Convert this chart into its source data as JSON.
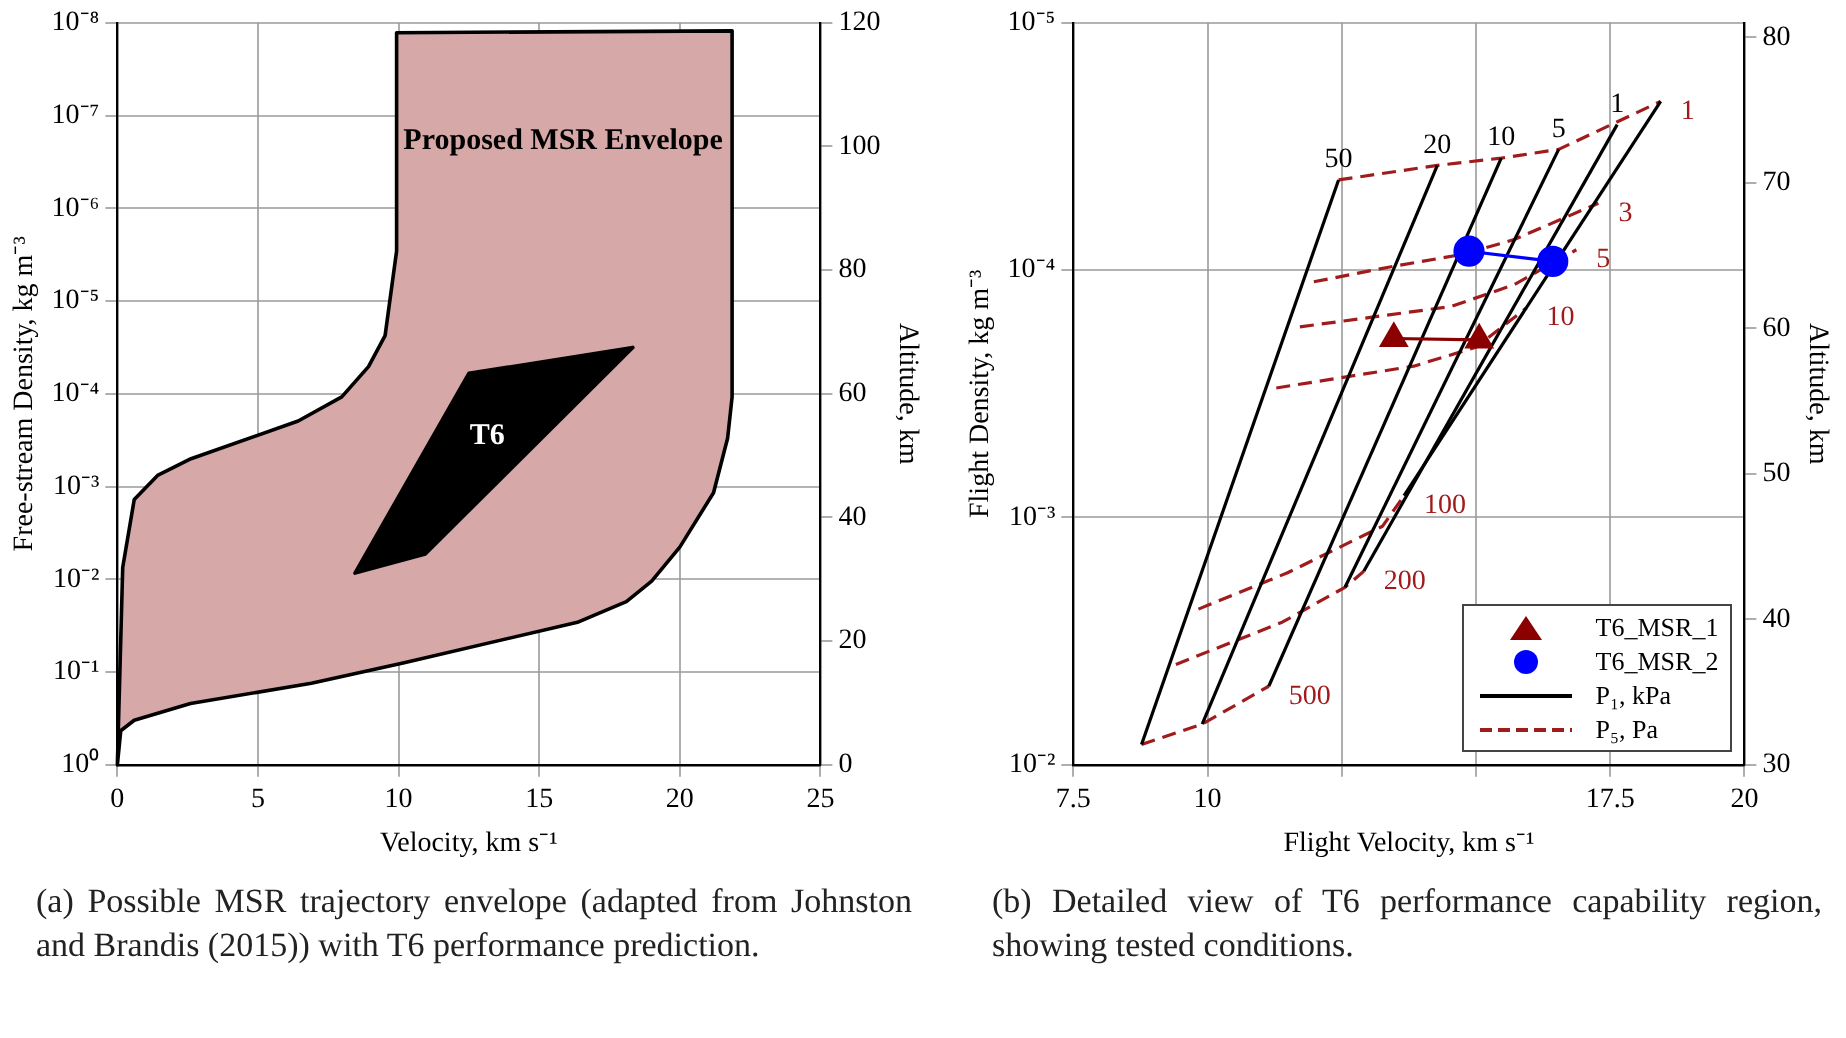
{
  "chart_data": [
    {
      "type": "area",
      "xlabel": "Velocity, km s⁻¹",
      "ylabel": "Free-stream Density, kg m⁻³",
      "y2label": "Altitude, km",
      "xlim": [
        0,
        25
      ],
      "xticks": [
        0,
        5,
        10,
        15,
        20,
        25
      ],
      "log": "y",
      "ylim": [
        1,
        1e-08
      ],
      "yticks": [
        {
          "value": 1,
          "label": "10⁰"
        },
        {
          "value": 0.1,
          "label": "10⁻¹"
        },
        {
          "value": 0.01,
          "label": "10⁻²"
        },
        {
          "value": 0.001,
          "label": "10⁻³"
        },
        {
          "value": 0.0001,
          "label": "10⁻⁴"
        },
        {
          "value": 1e-05,
          "label": "10⁻⁵"
        },
        {
          "value": 1e-06,
          "label": "10⁻⁶"
        },
        {
          "value": 1e-07,
          "label": "10⁻⁷"
        },
        {
          "value": 1e-08,
          "label": "10⁻⁸"
        }
      ],
      "y2lim": [
        0,
        120
      ],
      "y2ticks": [
        0,
        20,
        40,
        60,
        80,
        100,
        120
      ],
      "grid": true,
      "legend": false,
      "series": [
        {
          "axis": "y2",
          "color": "#d6a8a8",
          "x": [
            0,
            0.12,
            0.6,
            2.6,
            6.9,
            10.2,
            16.4,
            18.1,
            19.0,
            20.0,
            21.2,
            21.7,
            21.86,
            21.86,
            9.93,
            9.93,
            9.52,
            8.93,
            7.98,
            6.43,
            2.62,
            1.43,
            0.6,
            0.19
          ],
          "values": [
            0,
            5.5,
            7.2,
            9.9,
            13.2,
            16.5,
            23.1,
            26.4,
            29.7,
            35.2,
            44.0,
            52.8,
            59.5,
            118.7,
            118.4,
            83.1,
            69.4,
            64.4,
            59.5,
            55.6,
            49.5,
            46.8,
            42.9,
            31.9
          ]
        },
        {
          "axis": "y2",
          "color": "#000000",
          "x": [
            8.45,
            10.95,
            18.33,
            12.5
          ],
          "values": [
            31.0,
            34.1,
            67.5,
            63.3
          ]
        }
      ],
      "annotations": [
        "Proposed MSR Envelope",
        "T6",
        "(a) Possible MSR trajectory envelope (adapted from Johnston and Brandis (2015)) with T6 performance prediction."
      ]
    },
    {
      "type": "line",
      "xlabel": "Flight Velocity, km s⁻¹",
      "ylabel": "Flight Density, kg m⁻³",
      "y2label": "Altitude, km",
      "xlim": [
        7.5,
        20
      ],
      "xticks": [
        7.5,
        10,
        {
          "value": 12.5,
          "label": null
        },
        {
          "value": 15,
          "label": null
        },
        17.5,
        20
      ],
      "log": "y",
      "ylim": [
        0.01,
        1e-05
      ],
      "yticks": [
        {
          "value": 0.01,
          "label": "10⁻²"
        },
        {
          "value": 0.001,
          "label": "10⁻³"
        },
        {
          "value": 0.0001,
          "label": "10⁻⁴"
        },
        {
          "value": 1e-05,
          "label": "10⁻⁵"
        }
      ],
      "y2lim": [
        30,
        81
      ],
      "y2ticks": [
        30,
        40,
        50,
        60,
        70,
        80
      ],
      "grid": true,
      "legend": "bottom right",
      "series": [
        {
          "name": "T6_MSR_1",
          "axis": "y2",
          "marker": "triangle",
          "color": "#8b0000",
          "x": [
            15.06,
            13.47
          ],
          "values": [
            59.2,
            59.3
          ]
        },
        {
          "name": "T6_MSR_2",
          "axis": "y2",
          "marker": "circle",
          "color": "#0000ff",
          "x": [
            16.43,
            14.87
          ],
          "values": [
            64.6,
            65.3
          ]
        },
        {
          "name": "P₁, kPa",
          "axis": "y2",
          "color": "#000000",
          "x": [
            8.77,
            12.44
          ],
          "values": [
            31.4,
            70.2
          ]
        },
        {
          "axis": "y2",
          "color": "#000000",
          "x": [
            9.9,
            14.28
          ],
          "values": [
            32.8,
            71.2
          ]
        },
        {
          "axis": "y2",
          "color": "#000000",
          "x": [
            11.14,
            15.47
          ],
          "values": [
            35.4,
            71.7
          ]
        },
        {
          "axis": "y2",
          "color": "#000000",
          "x": [
            12.56,
            16.54
          ],
          "values": [
            42.2,
            72.3
          ]
        },
        {
          "axis": "y2",
          "color": "#000000",
          "x": [
            12.91,
            17.63
          ],
          "values": [
            43.3,
            74.0
          ]
        },
        {
          "axis": "y2",
          "color": "#000000",
          "x": [
            13.66,
            18.44
          ],
          "values": [
            48.5,
            75.6
          ]
        },
        {
          "name": "P₅, Pa",
          "axis": "y2",
          "line_style": "dashed",
          "color": "#a01c1c",
          "x": [
            12.44,
            14.28,
            15.47,
            16.54,
            18.44
          ],
          "values": [
            70.2,
            71.2,
            71.7,
            72.3,
            75.6
          ]
        },
        {
          "axis": "y2",
          "line_style": "dashed",
          "color": "#a01c1c",
          "x": [
            11.98,
            13.37,
            14.77,
            15.71,
            17.28
          ],
          "values": [
            63.2,
            64.2,
            65.1,
            66.1,
            68.6
          ]
        },
        {
          "axis": "y2",
          "line_style": "dashed",
          "color": "#a01c1c",
          "x": [
            11.72,
            14.54,
            15.71,
            16.87
          ],
          "values": [
            60.1,
            61.5,
            63.0,
            65.4
          ]
        },
        {
          "axis": "y2",
          "line_style": "dashed",
          "color": "#a01c1c",
          "x": [
            11.28,
            13.84,
            15.0,
            15.94
          ],
          "values": [
            55.9,
            57.4,
            58.7,
            61.4
          ]
        },
        {
          "axis": "y2",
          "line_style": "dashed",
          "color": "#a01c1c",
          "x": [
            9.83,
            11.49,
            13.26,
            13.66
          ],
          "values": [
            40.7,
            43.2,
            46.4,
            48.5
          ]
        },
        {
          "axis": "y2",
          "line_style": "dashed",
          "color": "#a01c1c",
          "x": [
            9.41,
            11.39,
            12.56,
            12.91
          ],
          "values": [
            36.9,
            39.8,
            42.2,
            43.3
          ]
        },
        {
          "axis": "y2",
          "line_style": "dashed",
          "color": "#a01c1c",
          "x": [
            8.77,
            9.9,
            11.14
          ],
          "values": [
            31.4,
            32.8,
            35.4
          ]
        }
      ],
      "annotations": [
        "50",
        "20",
        "10",
        "5",
        "1",
        "1",
        "3",
        "5",
        "10",
        "100",
        "200",
        "500",
        "(b) Detailed view of T6 performance capability region, showing tested conditions."
      ]
    }
  ]
}
